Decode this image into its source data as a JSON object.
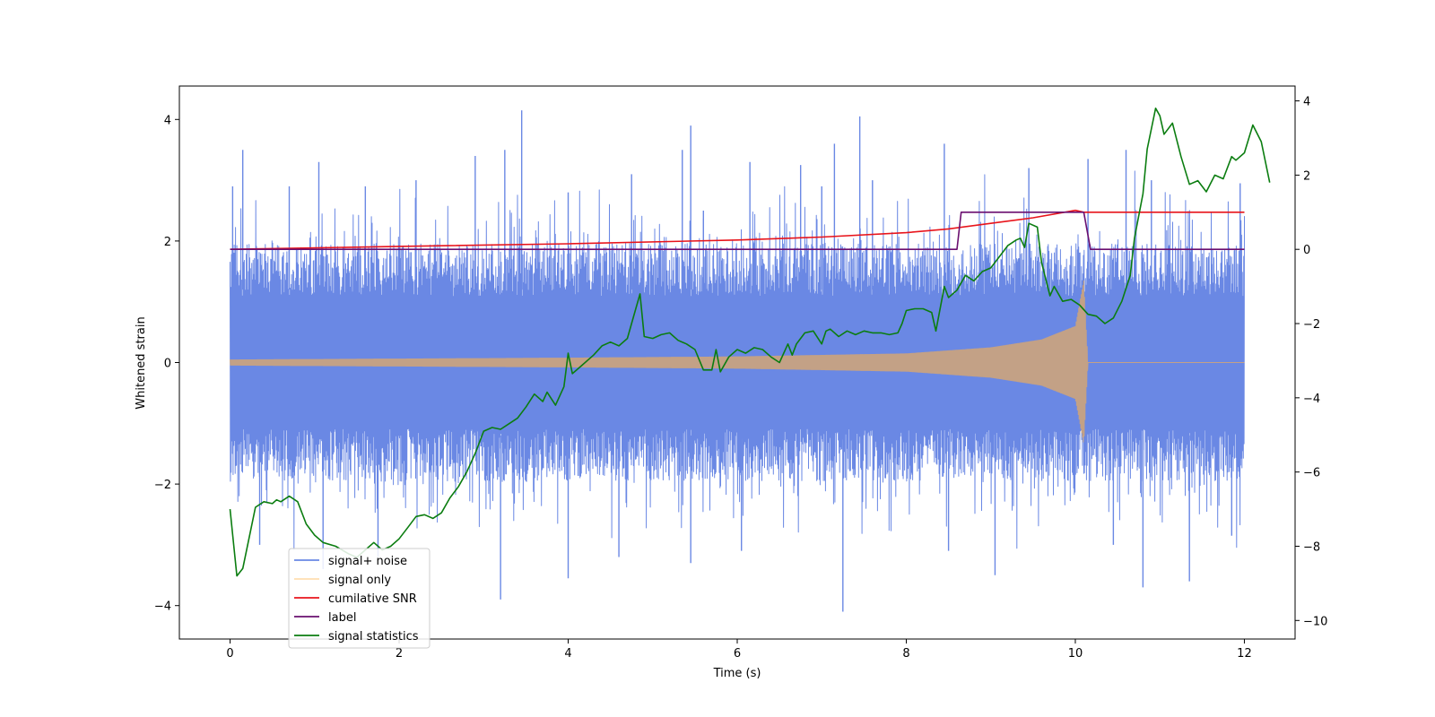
{
  "chart_data": {
    "type": "line",
    "title": "",
    "xlabel": "Time (s)",
    "ylabel": "Whitened strain",
    "y2label": "",
    "xlim": [
      -0.6,
      12.6
    ],
    "ylim": [
      -4.55,
      4.55
    ],
    "y2lim": [
      -10.5,
      4.4
    ],
    "xticks": [
      0,
      2,
      4,
      6,
      8,
      10,
      12
    ],
    "xtick_labels": [
      "0",
      "2",
      "4",
      "6",
      "8",
      "10",
      "12"
    ],
    "yticks": [
      -4,
      -2,
      0,
      2,
      4
    ],
    "ytick_labels": [
      "−4",
      "−2",
      "0",
      "2",
      "4"
    ],
    "y2ticks": [
      -10,
      -8,
      -6,
      -4,
      -2,
      0,
      2,
      4
    ],
    "y2tick_labels": [
      "−10",
      "−8",
      "−6",
      "−4",
      "−2",
      "0",
      "2",
      "4"
    ],
    "grid": false,
    "legend_position": "lower-left",
    "series": [
      {
        "name": "signal+ noise",
        "axis": "left",
        "color": "#6a88e4",
        "style": "noise-band",
        "x_range": [
          0,
          12
        ],
        "band_center": 0.0,
        "band_core": 1.45,
        "upper_peaks": [
          [
            0.03,
            2.9
          ],
          [
            0.15,
            3.5
          ],
          [
            0.7,
            2.9
          ],
          [
            1.05,
            3.3
          ],
          [
            1.6,
            2.9
          ],
          [
            2.2,
            3.0
          ],
          [
            2.9,
            3.4
          ],
          [
            3.25,
            3.5
          ],
          [
            3.45,
            4.15
          ],
          [
            4.0,
            2.8
          ],
          [
            4.75,
            3.1
          ],
          [
            5.35,
            3.5
          ],
          [
            5.45,
            3.9
          ],
          [
            5.6,
            2.5
          ],
          [
            6.15,
            3.3
          ],
          [
            6.75,
            3.25
          ],
          [
            7.0,
            2.9
          ],
          [
            7.15,
            3.6
          ],
          [
            7.45,
            4.05
          ],
          [
            7.6,
            3.0
          ],
          [
            8.45,
            3.6
          ],
          [
            9.45,
            3.2
          ],
          [
            10.15,
            3.35
          ],
          [
            10.6,
            3.5
          ],
          [
            10.9,
            3.0
          ],
          [
            11.95,
            2.95
          ]
        ],
        "lower_peaks": [
          [
            0.35,
            -3.0
          ],
          [
            1.1,
            -3.4
          ],
          [
            1.75,
            -3.2
          ],
          [
            3.2,
            -3.9
          ],
          [
            4.0,
            -3.55
          ],
          [
            4.6,
            -3.2
          ],
          [
            5.45,
            -3.3
          ],
          [
            6.05,
            -3.1
          ],
          [
            7.25,
            -4.1
          ],
          [
            8.5,
            -3.1
          ],
          [
            9.05,
            -3.5
          ],
          [
            10.45,
            -3.0
          ],
          [
            10.8,
            -3.7
          ],
          [
            11.35,
            -3.6
          ],
          [
            11.85,
            -2.85
          ]
        ]
      },
      {
        "name": "signal only",
        "axis": "left",
        "color": "#ffb347",
        "style": "chirp",
        "x_range": [
          0,
          12
        ],
        "envelope": [
          [
            0,
            0.05
          ],
          [
            4,
            0.08
          ],
          [
            6,
            0.1
          ],
          [
            8,
            0.15
          ],
          [
            9,
            0.25
          ],
          [
            9.6,
            0.38
          ],
          [
            10.0,
            0.6
          ],
          [
            10.1,
            1.35
          ],
          [
            10.15,
            0.0
          ],
          [
            12,
            0.0
          ]
        ]
      },
      {
        "name": "cumilative SNR",
        "axis": "right",
        "color": "#e8141b",
        "style": "line",
        "points": [
          [
            0,
            0.0
          ],
          [
            2,
            0.08
          ],
          [
            4,
            0.15
          ],
          [
            6,
            0.25
          ],
          [
            7,
            0.33
          ],
          [
            8,
            0.45
          ],
          [
            8.5,
            0.55
          ],
          [
            9,
            0.7
          ],
          [
            9.5,
            0.85
          ],
          [
            10,
            1.05
          ],
          [
            10.1,
            1.0
          ],
          [
            12,
            1.0
          ]
        ]
      },
      {
        "name": "label",
        "axis": "right",
        "color": "#6a0f6f",
        "style": "line",
        "points": [
          [
            0,
            0.0
          ],
          [
            8.6,
            0.0
          ],
          [
            8.65,
            1.0
          ],
          [
            10.1,
            1.0
          ],
          [
            10.18,
            0.0
          ],
          [
            12,
            0.0
          ]
        ]
      },
      {
        "name": "signal statistics",
        "axis": "right",
        "color": "#0b7d10",
        "style": "line",
        "points": [
          [
            0,
            -7.0
          ],
          [
            0.08,
            -8.8
          ],
          [
            0.15,
            -8.6
          ],
          [
            0.25,
            -7.5
          ],
          [
            0.3,
            -6.95
          ],
          [
            0.4,
            -6.8
          ],
          [
            0.5,
            -6.85
          ],
          [
            0.55,
            -6.75
          ],
          [
            0.6,
            -6.8
          ],
          [
            0.7,
            -6.65
          ],
          [
            0.8,
            -6.8
          ],
          [
            0.9,
            -7.4
          ],
          [
            1.0,
            -7.7
          ],
          [
            1.1,
            -7.9
          ],
          [
            1.25,
            -8.0
          ],
          [
            1.4,
            -8.2
          ],
          [
            1.5,
            -8.3
          ],
          [
            1.6,
            -8.1
          ],
          [
            1.7,
            -7.9
          ],
          [
            1.8,
            -8.1
          ],
          [
            1.9,
            -8.0
          ],
          [
            2.0,
            -7.8
          ],
          [
            2.1,
            -7.5
          ],
          [
            2.2,
            -7.2
          ],
          [
            2.3,
            -7.15
          ],
          [
            2.4,
            -7.25
          ],
          [
            2.5,
            -7.1
          ],
          [
            2.6,
            -6.7
          ],
          [
            2.7,
            -6.4
          ],
          [
            2.8,
            -6.0
          ],
          [
            2.9,
            -5.5
          ],
          [
            3.0,
            -4.9
          ],
          [
            3.1,
            -4.8
          ],
          [
            3.2,
            -4.85
          ],
          [
            3.3,
            -4.7
          ],
          [
            3.4,
            -4.55
          ],
          [
            3.5,
            -4.25
          ],
          [
            3.6,
            -3.9
          ],
          [
            3.7,
            -4.1
          ],
          [
            3.75,
            -3.85
          ],
          [
            3.85,
            -4.2
          ],
          [
            3.95,
            -3.7
          ],
          [
            4.0,
            -2.8
          ],
          [
            4.05,
            -3.35
          ],
          [
            4.15,
            -3.15
          ],
          [
            4.3,
            -2.85
          ],
          [
            4.4,
            -2.6
          ],
          [
            4.5,
            -2.5
          ],
          [
            4.6,
            -2.6
          ],
          [
            4.7,
            -2.4
          ],
          [
            4.75,
            -2.0
          ],
          [
            4.85,
            -1.2
          ],
          [
            4.9,
            -2.35
          ],
          [
            5.0,
            -2.4
          ],
          [
            5.1,
            -2.3
          ],
          [
            5.2,
            -2.25
          ],
          [
            5.3,
            -2.45
          ],
          [
            5.4,
            -2.55
          ],
          [
            5.5,
            -2.7
          ],
          [
            5.6,
            -3.25
          ],
          [
            5.7,
            -3.25
          ],
          [
            5.75,
            -2.7
          ],
          [
            5.8,
            -3.3
          ],
          [
            5.9,
            -2.9
          ],
          [
            6.0,
            -2.7
          ],
          [
            6.1,
            -2.8
          ],
          [
            6.2,
            -2.65
          ],
          [
            6.3,
            -2.7
          ],
          [
            6.4,
            -2.9
          ],
          [
            6.5,
            -3.05
          ],
          [
            6.6,
            -2.55
          ],
          [
            6.65,
            -2.85
          ],
          [
            6.7,
            -2.55
          ],
          [
            6.8,
            -2.25
          ],
          [
            6.9,
            -2.2
          ],
          [
            7.0,
            -2.55
          ],
          [
            7.05,
            -2.2
          ],
          [
            7.1,
            -2.15
          ],
          [
            7.2,
            -2.35
          ],
          [
            7.3,
            -2.2
          ],
          [
            7.4,
            -2.3
          ],
          [
            7.5,
            -2.2
          ],
          [
            7.6,
            -2.25
          ],
          [
            7.7,
            -2.25
          ],
          [
            7.8,
            -2.3
          ],
          [
            7.9,
            -2.25
          ],
          [
            7.95,
            -2.0
          ],
          [
            8.0,
            -1.65
          ],
          [
            8.1,
            -1.6
          ],
          [
            8.2,
            -1.6
          ],
          [
            8.3,
            -1.7
          ],
          [
            8.35,
            -2.2
          ],
          [
            8.45,
            -1.0
          ],
          [
            8.5,
            -1.3
          ],
          [
            8.6,
            -1.1
          ],
          [
            8.7,
            -0.7
          ],
          [
            8.8,
            -0.85
          ],
          [
            8.9,
            -0.6
          ],
          [
            9.0,
            -0.5
          ],
          [
            9.1,
            -0.2
          ],
          [
            9.2,
            0.1
          ],
          [
            9.3,
            0.25
          ],
          [
            9.35,
            0.3
          ],
          [
            9.4,
            0.05
          ],
          [
            9.45,
            0.7
          ],
          [
            9.55,
            0.6
          ],
          [
            9.6,
            -0.35
          ],
          [
            9.7,
            -1.25
          ],
          [
            9.75,
            -1.0
          ],
          [
            9.85,
            -1.4
          ],
          [
            9.95,
            -1.35
          ],
          [
            10.05,
            -1.5
          ],
          [
            10.15,
            -1.75
          ],
          [
            10.25,
            -1.8
          ],
          [
            10.35,
            -2.0
          ],
          [
            10.45,
            -1.85
          ],
          [
            10.55,
            -1.4
          ],
          [
            10.65,
            -0.7
          ],
          [
            10.7,
            0.3
          ],
          [
            10.8,
            1.5
          ],
          [
            10.85,
            2.7
          ],
          [
            10.95,
            3.8
          ],
          [
            11.0,
            3.6
          ],
          [
            11.05,
            3.1
          ],
          [
            11.15,
            3.4
          ],
          [
            11.25,
            2.5
          ],
          [
            11.35,
            1.75
          ],
          [
            11.45,
            1.85
          ],
          [
            11.55,
            1.55
          ],
          [
            11.65,
            2.0
          ],
          [
            11.75,
            1.9
          ],
          [
            11.85,
            2.5
          ],
          [
            11.9,
            2.4
          ],
          [
            12.0,
            2.6
          ],
          [
            12.1,
            3.35
          ],
          [
            12.2,
            2.9
          ],
          [
            12.3,
            1.8
          ]
        ]
      }
    ]
  }
}
